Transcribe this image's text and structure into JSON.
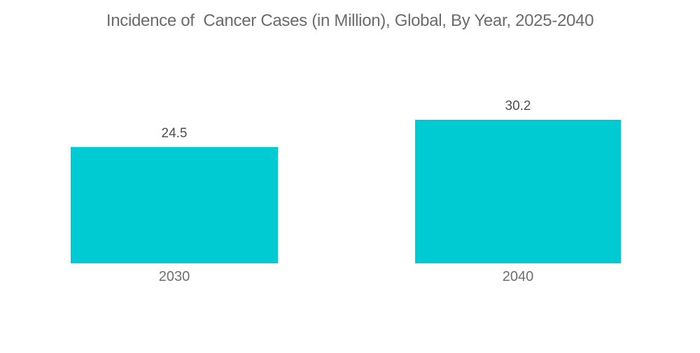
{
  "chart_data": {
    "type": "bar",
    "title": "Incidence of  Cancer Cases (in Million), Global, By Year, 2025-2040",
    "categories": [
      "2030",
      "2040"
    ],
    "values": [
      24.5,
      30.2
    ],
    "value_labels": [
      "24.5",
      "30.2"
    ],
    "xlabel": "",
    "ylabel": "",
    "ylim": [
      0,
      30.2
    ],
    "grid": false,
    "legend": "none",
    "axes_visible": false,
    "data_labels_position": "above-bar",
    "bar_color": "#00CAD2",
    "title_color": "#6b6b6b",
    "value_label_color": "#4f4f4f",
    "category_label_color": "#6e6e6e",
    "background_color": "#ffffff"
  }
}
